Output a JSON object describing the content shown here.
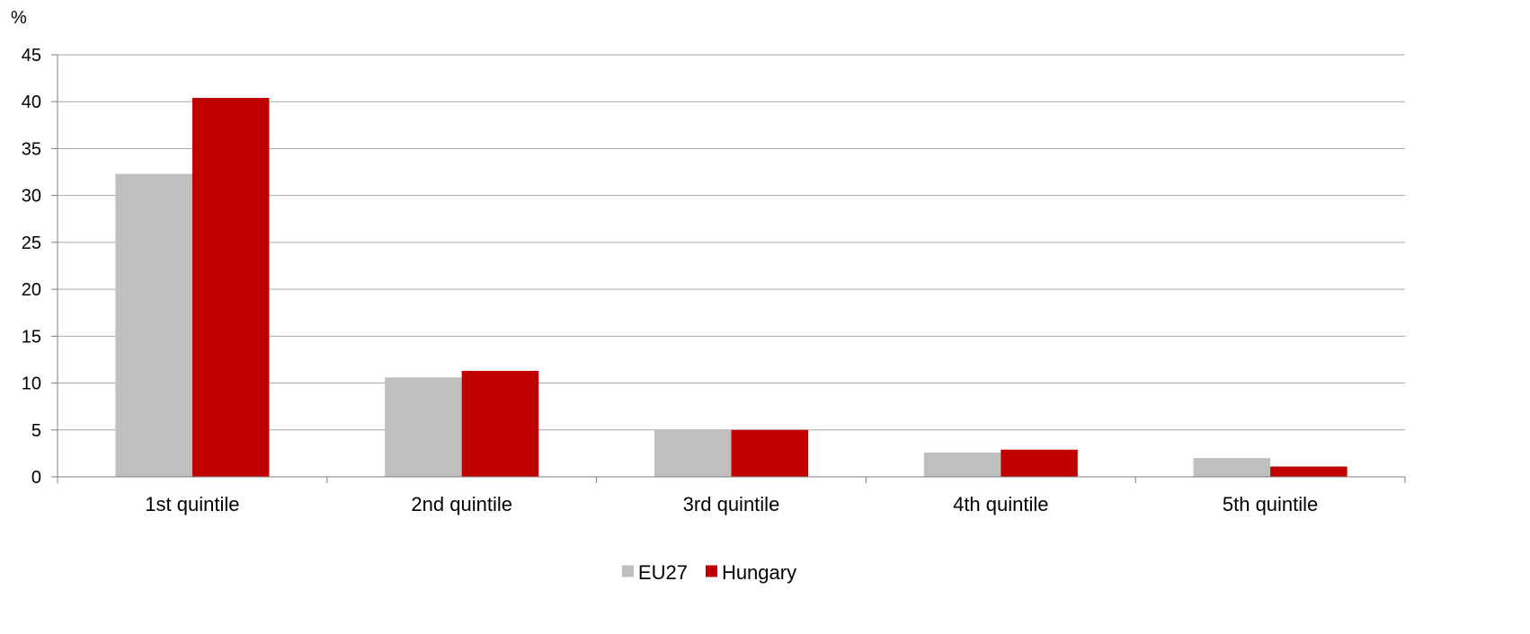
{
  "chart_data": {
    "type": "bar",
    "unit_label": "%",
    "categories": [
      "1st quintile",
      "2nd quintile",
      "3rd quintile",
      "4th quintile",
      "5th quintile"
    ],
    "series": [
      {
        "name": "EU27",
        "color": "#bfbfbf",
        "values": [
          32.3,
          10.6,
          5.0,
          2.6,
          2.0
        ]
      },
      {
        "name": "Hungary",
        "color": "#c00000",
        "values": [
          40.4,
          11.3,
          5.0,
          2.9,
          1.1
        ]
      }
    ],
    "ylim": [
      0,
      45
    ],
    "yticks": [
      0,
      5,
      10,
      15,
      20,
      25,
      30,
      35,
      40,
      45
    ],
    "grid": true,
    "legend_position": "bottom"
  }
}
